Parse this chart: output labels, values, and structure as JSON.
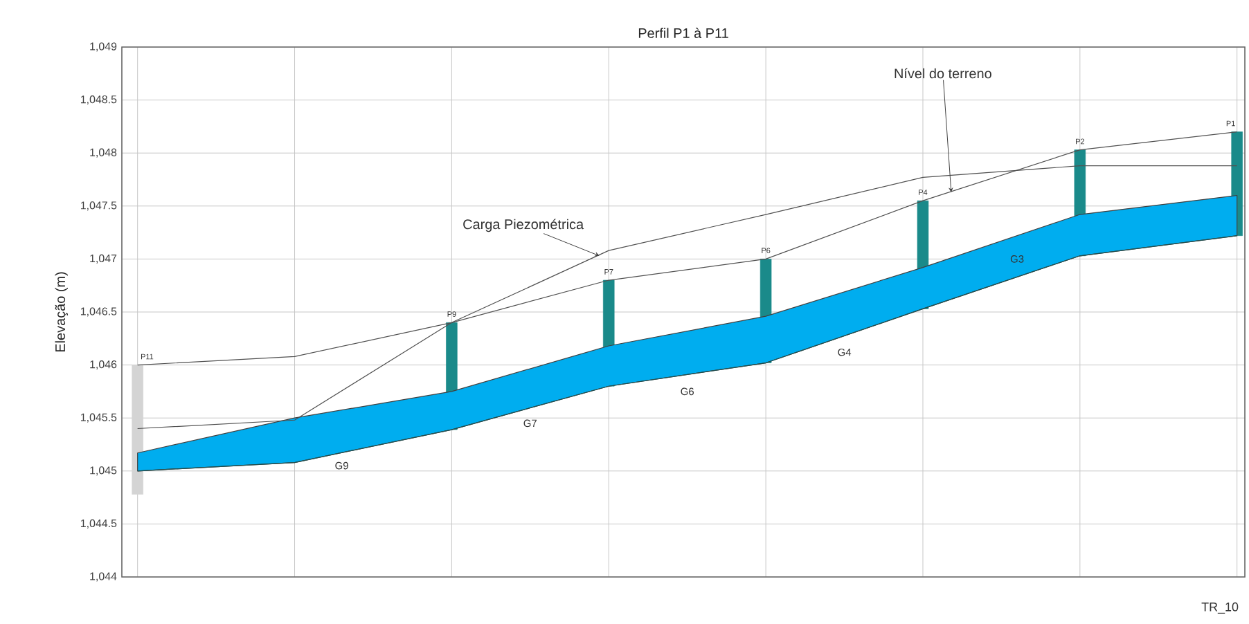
{
  "chart_data": {
    "type": "line",
    "title": "Perfil P1 à P11",
    "ylabel": "Elevação (m)",
    "categories": [
      null,
      null,
      null,
      null,
      null,
      null,
      null,
      null
    ],
    "ylim": [
      1044,
      1049
    ],
    "yticks": [
      {
        "value": 1044,
        "label": "1,044"
      },
      {
        "value": 1044.5,
        "label": "1,044.5"
      },
      {
        "value": 1045,
        "label": "1,045"
      },
      {
        "value": 1045.5,
        "label": "1,045.5"
      },
      {
        "value": 1046,
        "label": "1,046"
      },
      {
        "value": 1046.5,
        "label": "1,046.5"
      },
      {
        "value": 1047,
        "label": "1,047"
      },
      {
        "value": 1047.5,
        "label": "1,047.5"
      },
      {
        "value": 1048,
        "label": "1,048"
      },
      {
        "value": 1048.5,
        "label": "1,048.5"
      },
      {
        "value": 1049,
        "label": "1,049"
      }
    ],
    "tick_labels": "y",
    "grid": true,
    "series": [
      {
        "type": "bar",
        "base": [
          1044.78,
          null,
          1045.39,
          1045.8,
          1046.02,
          1046.53,
          1047.03,
          1047.22
        ],
        "values": [
          1.22,
          null,
          1.01,
          1.0,
          0.98,
          1.02,
          1.0,
          0.98
        ],
        "colors": [
          "#d4d4d4",
          null,
          "#1a8a8a",
          "#1a8a8a",
          "#1a8a8a",
          "#1a8a8a",
          "#1a8a8a",
          "#1a8a8a"
        ]
      },
      {
        "color": "#1f4f4f",
        "values": [
          1045.0,
          1045.08,
          1045.39,
          1045.8,
          1046.02,
          1046.53,
          1047.03,
          1047.22
        ],
        "lower": [
          1045.0,
          1045.08,
          1045.39,
          1045.8,
          1046.02,
          1046.53,
          1047.03,
          1047.22
        ],
        "upper": [
          1045.17,
          1045.5,
          1045.75,
          1046.18,
          1046.46,
          1046.92,
          1047.42,
          1047.6
        ]
      },
      {
        "color": "#505050",
        "values": [
          1046.0,
          1046.08,
          1046.4,
          1046.8,
          1047.0,
          1047.55,
          1048.03,
          1048.2
        ]
      },
      {
        "color": "#505050",
        "values": [
          1045.4,
          1045.48,
          1046.4,
          1047.08,
          1047.42,
          1047.77,
          1047.88,
          1047.88
        ]
      }
    ],
    "annotations": [
      "Carga Piezométrica",
      "Nível do terreno",
      {
        "text": "P11",
        "y": 1046.0
      },
      {
        "text": "P9",
        "y": 1046.4
      },
      {
        "text": "P7",
        "y": 1046.8
      },
      {
        "text": "P6",
        "y": 1047.0
      },
      {
        "text": "P4",
        "y": 1047.55
      },
      {
        "text": "P2",
        "y": 1048.03
      },
      {
        "text": "P1",
        "y": 1048.2
      },
      "G9",
      "G7",
      "G6",
      "G4",
      "G3",
      "TR_10"
    ]
  }
}
